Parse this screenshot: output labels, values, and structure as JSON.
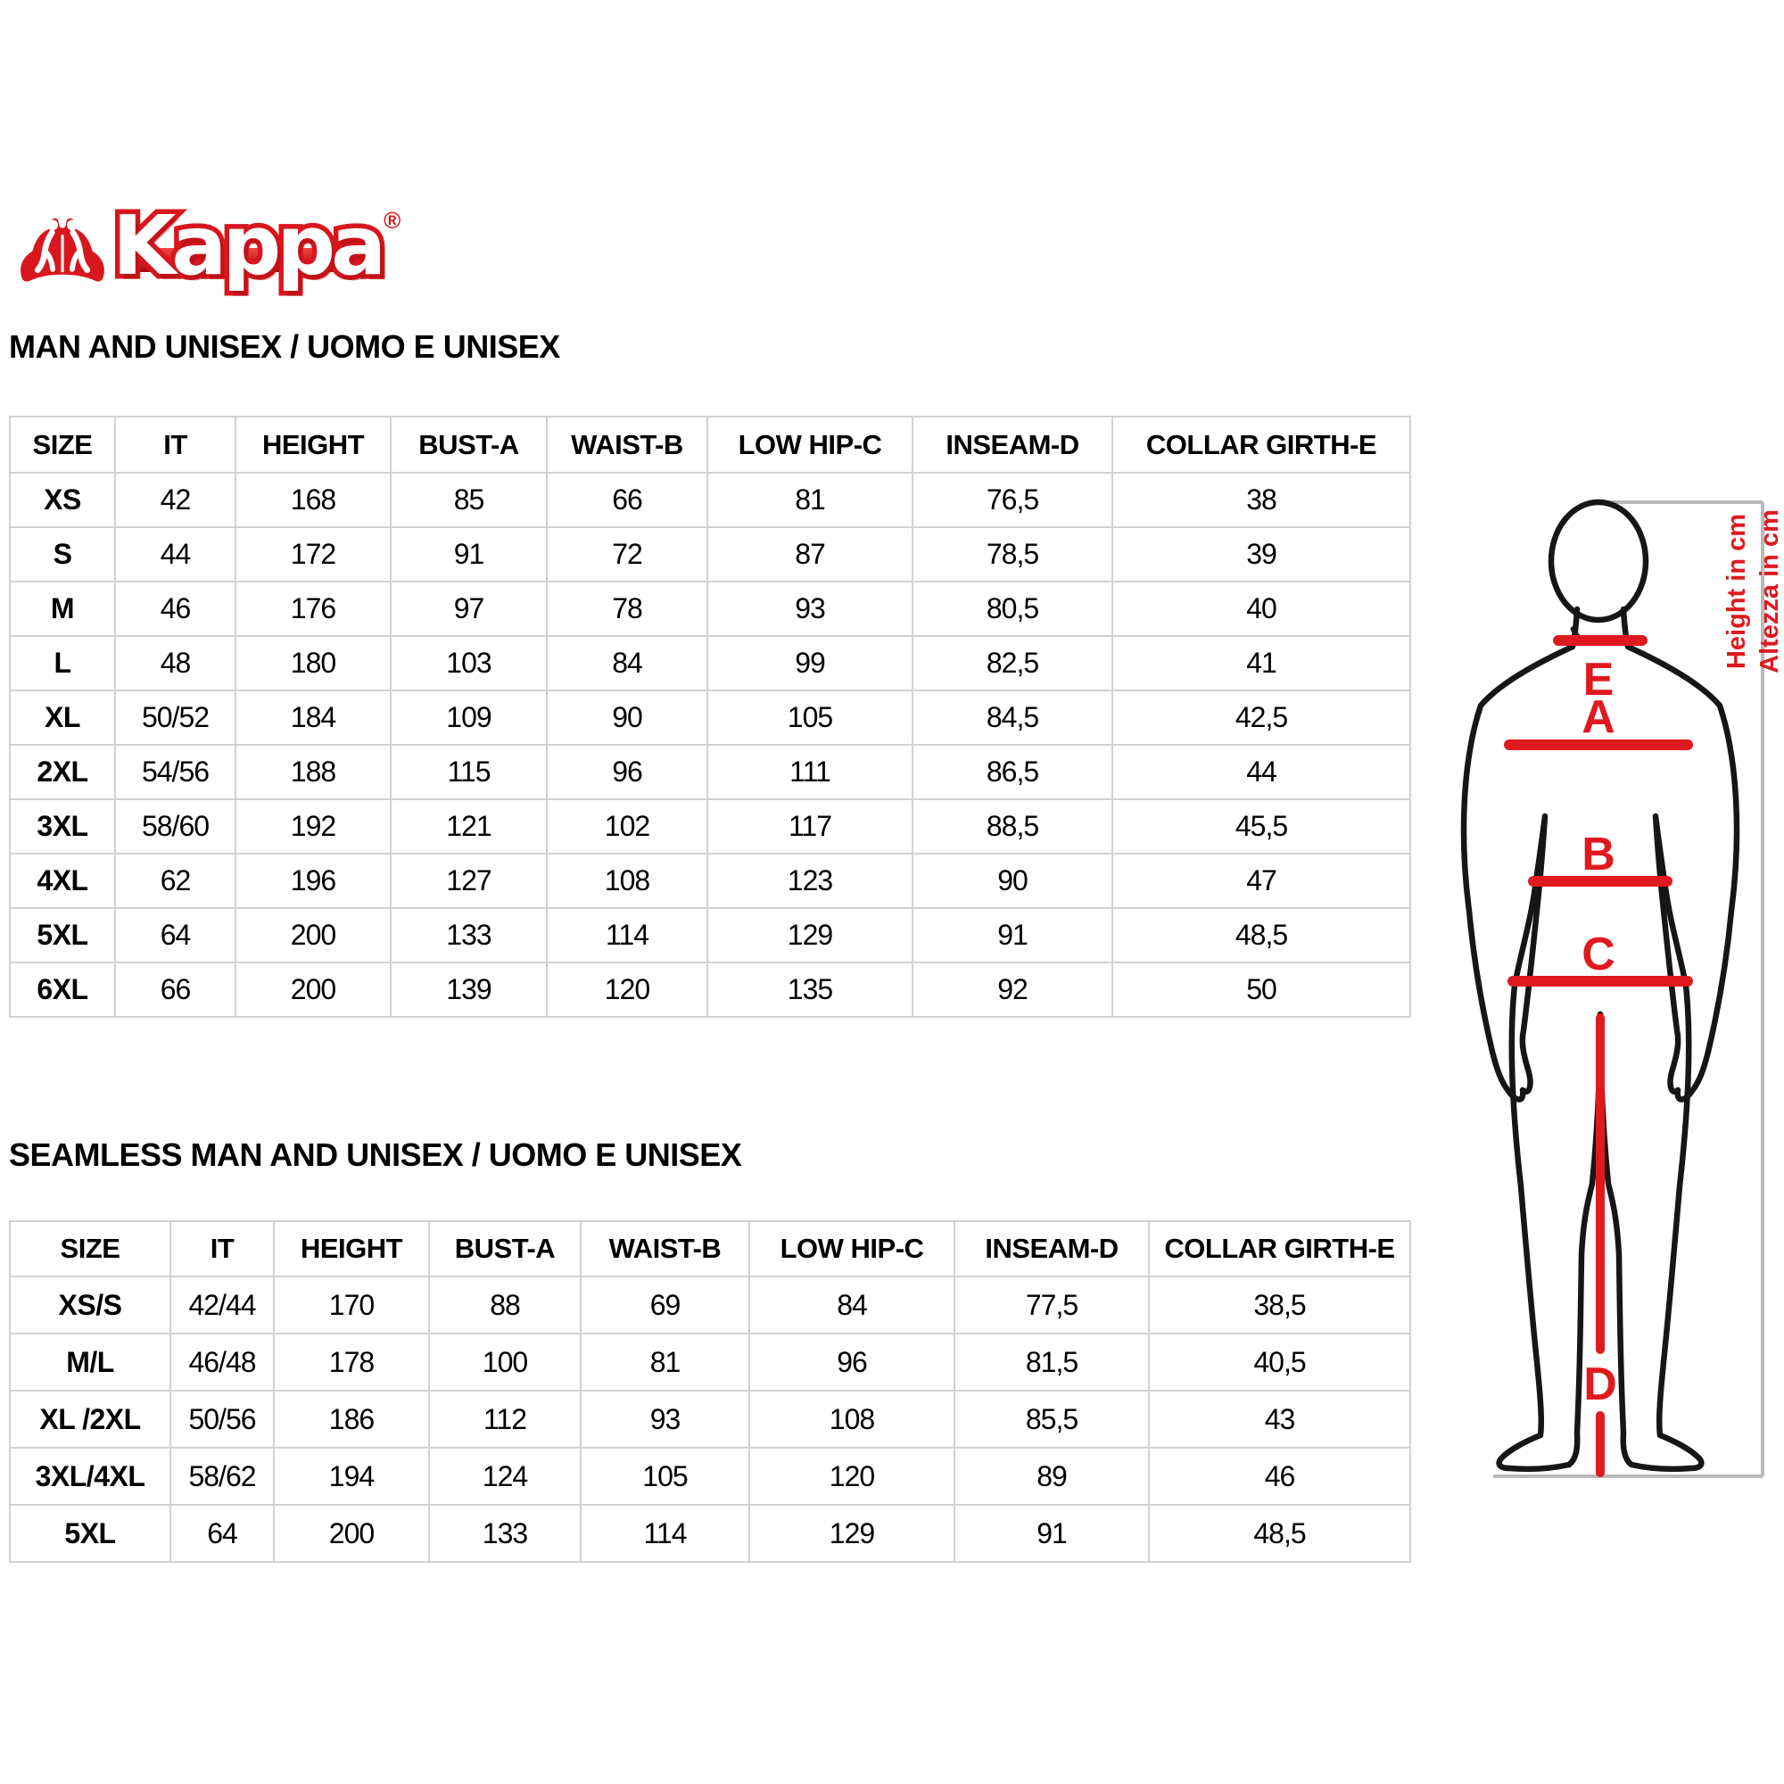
{
  "logo": {
    "brand_text": "Kappa",
    "registered_mark": "®",
    "icon": "kappa-omini-icon",
    "colors": {
      "logo_red": "#d8161d"
    }
  },
  "tables": [
    {
      "title": "MAN AND UNISEX / UOMO E UNISEX",
      "columns": [
        "SIZE",
        "IT",
        "HEIGHT",
        "BUST-A",
        "WAIST-B",
        "LOW HIP-C",
        "INSEAM-D",
        "COLLAR GIRTH-E"
      ],
      "rows": [
        [
          "XS",
          "42",
          "168",
          "85",
          "66",
          "81",
          "76,5",
          "38"
        ],
        [
          "S",
          "44",
          "172",
          "91",
          "72",
          "87",
          "78,5",
          "39"
        ],
        [
          "M",
          "46",
          "176",
          "97",
          "78",
          "93",
          "80,5",
          "40"
        ],
        [
          "L",
          "48",
          "180",
          "103",
          "84",
          "99",
          "82,5",
          "41"
        ],
        [
          "XL",
          "50/52",
          "184",
          "109",
          "90",
          "105",
          "84,5",
          "42,5"
        ],
        [
          "2XL",
          "54/56",
          "188",
          "115",
          "96",
          "111",
          "86,5",
          "44"
        ],
        [
          "3XL",
          "58/60",
          "192",
          "121",
          "102",
          "117",
          "88,5",
          "45,5"
        ],
        [
          "4XL",
          "62",
          "196",
          "127",
          "108",
          "123",
          "90",
          "47"
        ],
        [
          "5XL",
          "64",
          "200",
          "133",
          "114",
          "129",
          "91",
          "48,5"
        ],
        [
          "6XL",
          "66",
          "200",
          "139",
          "120",
          "135",
          "92",
          "50"
        ]
      ]
    },
    {
      "title": "SEAMLESS MAN AND UNISEX / UOMO E UNISEX",
      "columns": [
        "SIZE",
        "IT",
        "HEIGHT",
        "BUST-A",
        "WAIST-B",
        "LOW HIP-C",
        "INSEAM-D",
        "COLLAR GIRTH-E"
      ],
      "rows": [
        [
          "XS/S",
          "42/44",
          "170",
          "88",
          "69",
          "84",
          "77,5",
          "38,5"
        ],
        [
          "M/L",
          "46/48",
          "178",
          "100",
          "81",
          "96",
          "81,5",
          "40,5"
        ],
        [
          "XL /2XL",
          "50/56",
          "186",
          "112",
          "93",
          "108",
          "85,5",
          "43"
        ],
        [
          "3XL/4XL",
          "58/62",
          "194",
          "124",
          "105",
          "120",
          "89",
          "46"
        ],
        [
          "5XL",
          "64",
          "200",
          "133",
          "114",
          "129",
          "91",
          "48,5"
        ]
      ]
    }
  ],
  "figure": {
    "labels": {
      "collar_e": "E",
      "bust_a": "A",
      "waist_b": "B",
      "low_hip_c": "C",
      "inseam_d": "D"
    },
    "height_note_en": "Height in cm",
    "height_note_it": "Altezza in cm",
    "colors": {
      "accent_red": "#e0191f",
      "bracket_gray": "#b9b9b9",
      "outline_black": "#161616"
    }
  }
}
